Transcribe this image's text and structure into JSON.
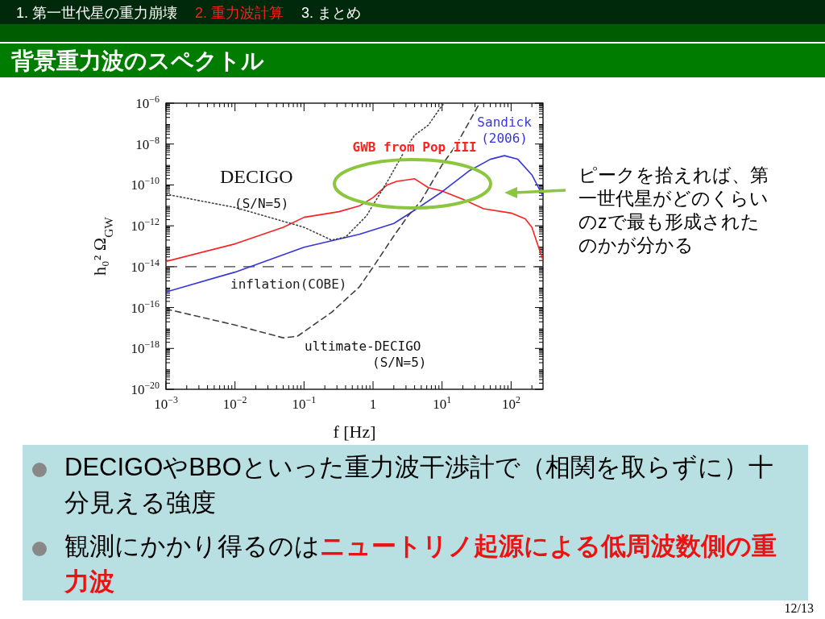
{
  "chart_data": {
    "type": "line",
    "title": "背景重力波のスペクトル",
    "xlabel": "f [Hz]",
    "ylabel": "h₀² Ω$_{GW}$",
    "log": "xy",
    "xlim": [
      0.001,
      290
    ],
    "ylim": [
      1e-20,
      1e-06
    ],
    "xticks": [
      {
        "value": 0.001,
        "label": "10$^{−3}$"
      },
      {
        "value": 0.01,
        "label": "10$^{−2}$"
      },
      {
        "value": 0.1,
        "label": "10$^{−1}$"
      },
      1,
      {
        "value": 10,
        "label": "10$^{1}$"
      },
      {
        "value": 100,
        "label": "10$^{2}$"
      }
    ],
    "yticks": [
      {
        "value": 1e-20,
        "label": "10$^{−20}$"
      },
      {
        "value": 1e-18,
        "label": "10$^{−18}$"
      },
      {
        "value": 1e-16,
        "label": "10$^{−16}$"
      },
      {
        "value": 1e-14,
        "label": "10$^{−14}$"
      },
      {
        "value": 1e-12,
        "label": "10$^{−12}$"
      },
      {
        "value": 1e-10,
        "label": "10$^{−10}$"
      },
      {
        "value": 1e-08,
        "label": "10$^{−8}$"
      },
      {
        "value": 1e-06,
        "label": "10$^{−6}$"
      }
    ],
    "grid": false,
    "series": [
      {
        "name": "GWB from Pop III",
        "color": "#ff2020",
        "line_style": "solid",
        "x": [
          0.001,
          0.01,
          0.05,
          0.1,
          0.32,
          0.63,
          1,
          1.6,
          2.2,
          3.2,
          4,
          6.3,
          10,
          20,
          40,
          100,
          160,
          200,
          250,
          290
        ],
        "values": [
          1.8e-14,
          1.3e-13,
          8.5e-13,
          2.6e-12,
          4.9e-12,
          9.3e-12,
          2.4e-11,
          1e-10,
          1.5e-10,
          1.8e-10,
          2e-10,
          7.4e-11,
          5e-11,
          2e-11,
          6.8e-12,
          4.2e-12,
          2.2e-12,
          8.5e-13,
          8.9e-14,
          2.1e-14
        ]
      },
      {
        "name": "Sandick (2006)",
        "color": "#3535e0",
        "line_style": "solid",
        "x": [
          0.001,
          0.01,
          0.1,
          0.63,
          2,
          4,
          10,
          25,
          50,
          80,
          125,
          200,
          290
        ],
        "values": [
          5.8e-16,
          5.4e-15,
          8.9e-14,
          3.8e-13,
          1.3e-12,
          5.8e-12,
          4.6e-11,
          5e-10,
          1.8e-09,
          2.7e-09,
          1.8e-09,
          3.1e-10,
          2.8e-11
        ]
      },
      {
        "color": "#404040",
        "line_style": "dotted",
        "x": [
          0.001,
          0.01,
          0.1,
          0.25,
          0.4,
          0.8,
          1.6,
          3.2,
          4,
          6.3,
          10,
          11
        ],
        "values": [
          3.5e-11,
          7.9e-12,
          8.5e-13,
          2e-13,
          2.8e-13,
          3e-12,
          1.4e-10,
          8.9e-09,
          2.7e-08,
          8.3e-08,
          7.8e-07,
          1e-06
        ]
      },
      {
        "color": "#404040",
        "line_style": "dashed",
        "x": [
          0.001,
          0.01,
          0.05,
          0.08,
          0.25,
          0.63,
          1,
          2,
          3.2,
          5,
          10,
          16,
          25,
          35
        ],
        "values": [
          8.5e-17,
          1.4e-17,
          3.3e-18,
          3.9e-18,
          5.8e-17,
          1e-15,
          9.5e-15,
          3.2e-13,
          3e-12,
          1.7e-11,
          9.5e-10,
          8.9e-09,
          1.3e-07,
          1e-06
        ]
      }
    ],
    "ref_lines": [
      {
        "axis": "y",
        "value": 1e-14,
        "label": "inflation(COBE)",
        "color": "#404040",
        "line_style": "dashed"
      }
    ],
    "annotations": [
      "1. 第一世代星の重力崩壊",
      "2. 重力波計算",
      "3. まとめ",
      "DECIGO",
      "(S/N=5)",
      "ultimate-DECIGO",
      "(S/N=5)",
      "ピークを拾えれば、第一世代星がどのくらいのzで最も形成されたのかが分かる",
      "DECIGOやBBOといった重力波干渉計で（相関を取らずに）十分見える強度",
      "観測にかかり得るのは",
      "ニュートリノ起源による低周波数側の重力波",
      "12/13"
    ]
  }
}
